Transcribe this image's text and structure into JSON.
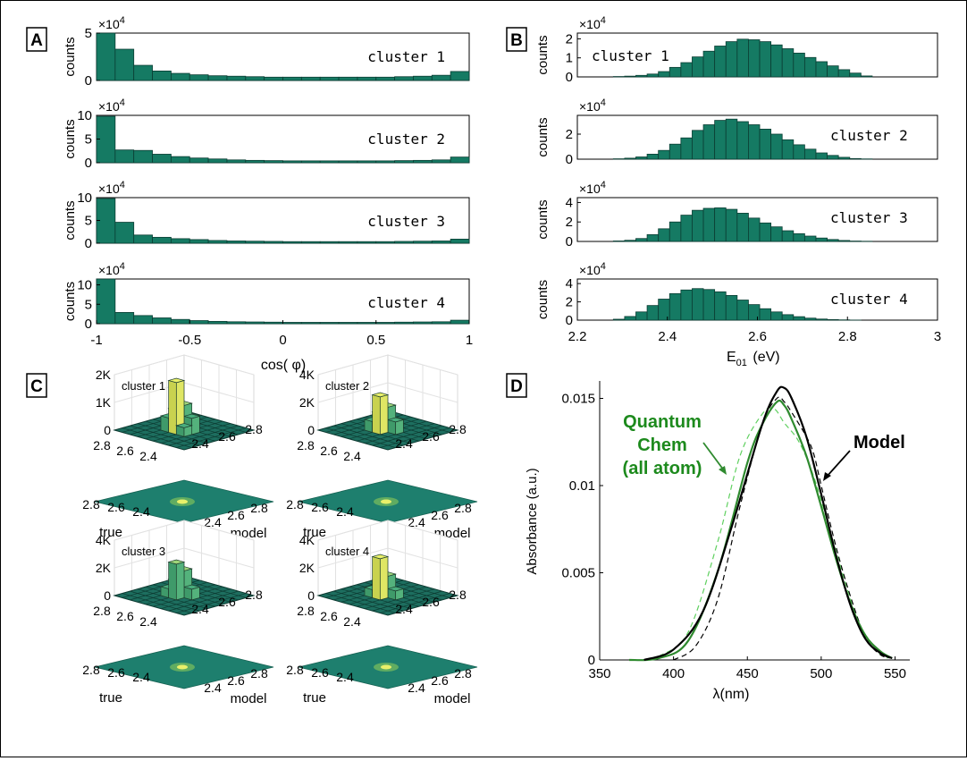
{
  "chart_data": [
    {
      "panel": "A",
      "type": "bar",
      "xlabel": "cos( φ)",
      "ylabel": "counts",
      "xlim": [
        -1,
        1
      ],
      "x_ticks": [
        "-1",
        "-0.5",
        "0",
        "0.5",
        "1"
      ],
      "bin_edges": [
        -1,
        -0.9,
        -0.8,
        -0.7,
        -0.6,
        -0.5,
        -0.4,
        -0.3,
        -0.2,
        -0.1,
        0,
        0.1,
        0.2,
        0.3,
        0.4,
        0.5,
        0.6,
        0.7,
        0.8,
        0.9,
        1
      ],
      "exponent_label": "×10",
      "exponent": "4",
      "subplots": [
        {
          "label": "cluster 1",
          "ylim": [
            0,
            5
          ],
          "y_ticks": [
            "0",
            "5"
          ],
          "values": [
            5.0,
            3.3,
            1.6,
            1.0,
            0.75,
            0.6,
            0.5,
            0.45,
            0.4,
            0.35,
            0.35,
            0.35,
            0.35,
            0.35,
            0.35,
            0.35,
            0.4,
            0.45,
            0.55,
            0.95
          ]
        },
        {
          "label": "cluster 2",
          "ylim": [
            0,
            10
          ],
          "y_ticks": [
            "0",
            "5",
            "10"
          ],
          "values": [
            9.8,
            2.7,
            2.6,
            1.8,
            1.3,
            1.0,
            0.8,
            0.6,
            0.5,
            0.45,
            0.4,
            0.4,
            0.4,
            0.4,
            0.4,
            0.4,
            0.45,
            0.5,
            0.6,
            1.2
          ]
        },
        {
          "label": "cluster 3",
          "ylim": [
            0,
            10
          ],
          "y_ticks": [
            "0",
            "5",
            "10"
          ],
          "values": [
            9.8,
            4.6,
            1.8,
            1.3,
            1.0,
            0.8,
            0.6,
            0.5,
            0.45,
            0.4,
            0.35,
            0.35,
            0.35,
            0.35,
            0.35,
            0.35,
            0.4,
            0.45,
            0.5,
            0.9
          ]
        },
        {
          "label": "cluster 4",
          "ylim": [
            0,
            11.5
          ],
          "y_ticks": [
            "0",
            "5",
            "10"
          ],
          "values": [
            11.5,
            2.9,
            2.1,
            1.5,
            1.1,
            0.8,
            0.6,
            0.5,
            0.45,
            0.4,
            0.35,
            0.35,
            0.35,
            0.35,
            0.35,
            0.35,
            0.4,
            0.45,
            0.5,
            0.9
          ]
        }
      ]
    },
    {
      "panel": "B",
      "type": "bar",
      "xlabel": "E",
      "xlabel_sub": "01",
      "xlabel_unit": "(eV)",
      "ylabel": "counts",
      "xlim": [
        2.2,
        3
      ],
      "x_ticks": [
        "2.2",
        "2.4",
        "2.6",
        "2.8",
        "3"
      ],
      "bin_start": 2.28,
      "bin_width": 0.025,
      "exponent_label": "×10",
      "exponent": "4",
      "subplots": [
        {
          "label": "cluster 1",
          "ylim": [
            0,
            2.3
          ],
          "y_ticks": [
            "0",
            "1",
            "2"
          ],
          "values": [
            0.02,
            0.04,
            0.08,
            0.15,
            0.28,
            0.5,
            0.75,
            1.05,
            1.35,
            1.62,
            1.85,
            1.98,
            1.95,
            1.85,
            1.68,
            1.48,
            1.25,
            1.02,
            0.8,
            0.58,
            0.38,
            0.2,
            0.05
          ]
        },
        {
          "label": "cluster 2",
          "ylim": [
            0,
            3.5
          ],
          "y_ticks": [
            "0",
            "2"
          ],
          "values": [
            0.03,
            0.08,
            0.18,
            0.4,
            0.7,
            1.2,
            1.7,
            2.3,
            2.75,
            3.1,
            3.2,
            3.0,
            2.75,
            2.4,
            2.0,
            1.55,
            1.15,
            0.8,
            0.5,
            0.3,
            0.15,
            0.05,
            0.02
          ]
        },
        {
          "label": "cluster 3",
          "ylim": [
            0,
            4.5
          ],
          "y_ticks": [
            "0",
            "2",
            "4"
          ],
          "values": [
            0.05,
            0.12,
            0.3,
            0.7,
            1.3,
            2.0,
            2.7,
            3.2,
            3.4,
            3.45,
            3.3,
            2.9,
            2.4,
            1.9,
            1.5,
            1.1,
            0.8,
            0.55,
            0.35,
            0.2,
            0.1,
            0.04,
            0.02
          ]
        },
        {
          "label": "cluster 4",
          "ylim": [
            0,
            4.5
          ],
          "y_ticks": [
            "0",
            "2",
            "4"
          ],
          "values": [
            0.1,
            0.4,
            0.9,
            1.6,
            2.3,
            2.9,
            3.3,
            3.45,
            3.35,
            3.1,
            2.7,
            2.2,
            1.7,
            1.25,
            0.9,
            0.6,
            0.38,
            0.22,
            0.12,
            0.06,
            0.03,
            0.01,
            0.0
          ]
        }
      ]
    },
    {
      "panel": "C",
      "type": "heatmap",
      "axis_ticks_front": [
        "2.8",
        "2.6",
        "2.4"
      ],
      "axis_ticks_side": [
        "2.4",
        "2.6",
        "2.8"
      ],
      "left_axis_label": "true",
      "right_axis_label": "model",
      "subplots": [
        {
          "label": "cluster 1",
          "z_ticks": [
            "0",
            "1K",
            "2K"
          ]
        },
        {
          "label": "cluster 2",
          "z_ticks": [
            "0",
            "2K",
            "4K"
          ]
        },
        {
          "label": "cluster 3",
          "z_ticks": [
            "0",
            "2K",
            "4K"
          ]
        },
        {
          "label": "cluster 4",
          "z_ticks": [
            "0",
            "2K",
            "4K"
          ]
        }
      ]
    },
    {
      "panel": "D",
      "type": "line",
      "xlabel": "λ(nm)",
      "ylabel": "Absorbance (a.u.)",
      "xlim": [
        350,
        560
      ],
      "ylim": [
        0,
        0.016
      ],
      "x_ticks": [
        "350",
        "400",
        "450",
        "500",
        "550"
      ],
      "y_ticks": [
        "0",
        "0.005",
        "0.01",
        "0.015"
      ],
      "series": [
        {
          "key": "model",
          "color": "#000000",
          "dash": false,
          "x": [
            380,
            400,
            420,
            440,
            460,
            470,
            475,
            480,
            490,
            500,
            510,
            520,
            530,
            540,
            548
          ],
          "y": [
            0.0,
            0.0006,
            0.0028,
            0.0078,
            0.0135,
            0.0154,
            0.0156,
            0.015,
            0.0128,
            0.0095,
            0.006,
            0.0031,
            0.0012,
            0.0004,
            0.0001
          ]
        },
        {
          "key": "model_ref",
          "color": "#000000",
          "dash": true,
          "x": [
            400,
            415,
            430,
            445,
            460,
            470,
            475,
            480,
            490,
            495,
            500,
            510,
            520,
            530,
            540,
            548
          ],
          "y": [
            0.0,
            0.0008,
            0.0035,
            0.0088,
            0.0135,
            0.015,
            0.0148,
            0.0142,
            0.0128,
            0.0118,
            0.01,
            0.0065,
            0.0036,
            0.0013,
            0.0003,
            0.0001
          ]
        },
        {
          "key": "qc",
          "color": "#2f8a2f",
          "dash": false,
          "x": [
            370,
            390,
            410,
            430,
            450,
            460,
            470,
            475,
            480,
            490,
            500,
            510,
            520,
            530,
            540,
            548
          ],
          "y": [
            0.0,
            0.0001,
            0.0011,
            0.0051,
            0.0113,
            0.0135,
            0.0148,
            0.0146,
            0.0138,
            0.0117,
            0.0088,
            0.0058,
            0.0032,
            0.0014,
            0.0005,
            0.0001
          ]
        },
        {
          "key": "qc_ref",
          "color": "#5fd05f",
          "dash": true,
          "x": [
            390,
            410,
            430,
            445,
            460,
            468,
            475,
            485,
            495,
            505,
            515,
            525,
            535,
            545
          ],
          "y": [
            0.0002,
            0.0016,
            0.0068,
            0.0117,
            0.0141,
            0.0144,
            0.0136,
            0.0125,
            0.0105,
            0.0077,
            0.0048,
            0.0022,
            0.0007,
            0.0001
          ]
        }
      ],
      "annotations": {
        "qc_label": [
          "Quantum",
          "Chem",
          "(all atom)"
        ],
        "model_label": "Model"
      }
    }
  ],
  "panels": {
    "A": "A",
    "B": "B",
    "C": "C",
    "D": "D"
  },
  "colors": {
    "bar_fill": "#157a63",
    "surface": "#1e7f6e",
    "peak": "#e9f06a",
    "qc": "#2f8a2f",
    "qc_text": "#1d8a1d"
  }
}
